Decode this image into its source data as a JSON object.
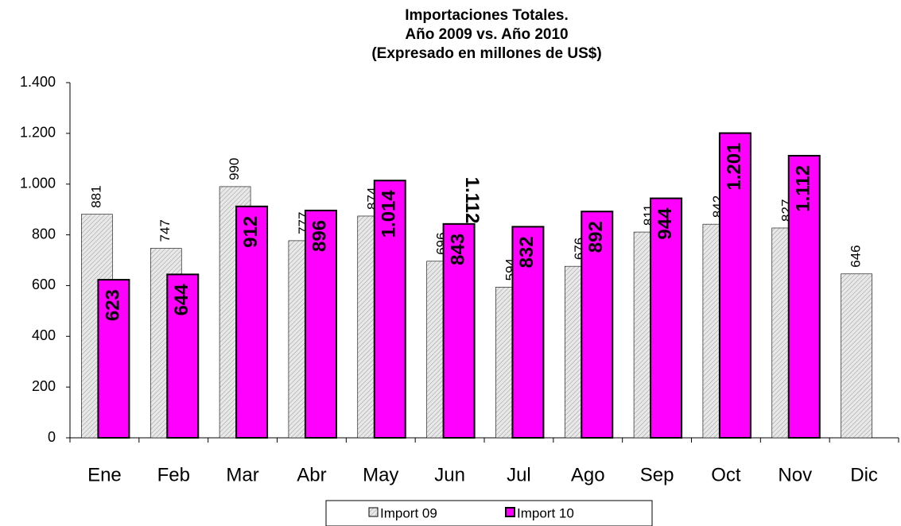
{
  "chart_data": {
    "type": "bar",
    "title": [
      "Importaciones Totales.",
      "Año 2009 vs. Año 2010",
      "(Expresado en millones de US$)"
    ],
    "categories": [
      "Ene",
      "Feb",
      "Mar",
      "Abr",
      "May",
      "Jun",
      "Jul",
      "Ago",
      "Sep",
      "Oct",
      "Nov",
      "Dic"
    ],
    "series": [
      {
        "name": "Import 09",
        "color": "#e8e8e8",
        "values": [
          881,
          747,
          990,
          777,
          874,
          696,
          594,
          676,
          811,
          842,
          827,
          646
        ]
      },
      {
        "name": "Import 10",
        "color": "#ff00ff",
        "values": [
          623,
          644,
          912,
          896,
          1014,
          843,
          832,
          892,
          944,
          1201,
          1112,
          null
        ],
        "value_labels": [
          "623",
          "644",
          "912",
          "896",
          "1.014",
          "843",
          "832",
          "892",
          "944",
          "1.201",
          "1.112",
          null
        ]
      }
    ],
    "annotation": "1.112",
    "ylim": [
      0,
      1400
    ],
    "yticks": [
      0,
      200,
      400,
      600,
      800,
      {
        "value": 1000,
        "label": "1.000"
      },
      {
        "value": 1200,
        "label": "1.200"
      },
      {
        "value": 1400,
        "label": "1.400"
      }
    ],
    "legend": "bottom"
  }
}
